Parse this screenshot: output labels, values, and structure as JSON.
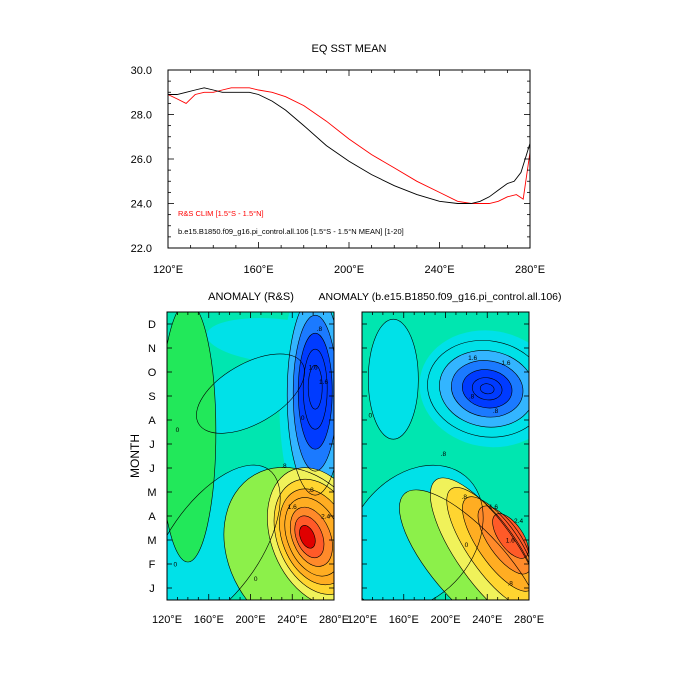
{
  "chart_data": [
    {
      "type": "line",
      "title": "EQ SST MEAN",
      "xlabel": "",
      "ylabel": "",
      "xlim": [
        120,
        280
      ],
      "ylim": [
        22,
        30
      ],
      "x_ticks": [
        "120°E",
        "160°E",
        "200°E",
        "240°E",
        "280°E"
      ],
      "y_ticks": [
        "22.0",
        "24.0",
        "26.0",
        "28.0",
        "30.0"
      ],
      "legend_position": "lower-left",
      "series": [
        {
          "name": "R&S CLIM [1.5°S - 1.5°N]",
          "color": "#ff0000",
          "x": [
            120,
            124,
            128,
            132,
            136,
            140,
            144,
            148,
            152,
            156,
            160,
            166,
            172,
            180,
            190,
            200,
            210,
            220,
            230,
            240,
            248,
            254,
            258,
            262,
            266,
            270,
            274,
            277,
            280
          ],
          "y": [
            28.9,
            28.7,
            28.5,
            28.9,
            29.0,
            29.0,
            29.1,
            29.2,
            29.2,
            29.2,
            29.1,
            29.0,
            28.8,
            28.4,
            27.7,
            26.9,
            26.2,
            25.6,
            25.0,
            24.5,
            24.1,
            24.0,
            24.0,
            24.0,
            24.1,
            24.3,
            24.4,
            24.2,
            26.3
          ]
        },
        {
          "name": "b.e15.B1850.f09_g16.pi_control.all.106 [1.5°S - 1.5°N MEAN] [1-20]",
          "color": "#000000",
          "x": [
            120,
            124,
            128,
            132,
            136,
            140,
            144,
            150,
            156,
            160,
            166,
            172,
            180,
            190,
            200,
            210,
            220,
            230,
            240,
            248,
            254,
            258,
            262,
            266,
            270,
            273,
            276,
            280
          ],
          "y": [
            28.9,
            28.9,
            29.0,
            29.1,
            29.2,
            29.1,
            29.0,
            29.0,
            29.0,
            28.9,
            28.6,
            28.2,
            27.5,
            26.6,
            25.9,
            25.3,
            24.8,
            24.4,
            24.1,
            24.0,
            24.0,
            24.1,
            24.3,
            24.6,
            24.9,
            25.0,
            25.4,
            26.7
          ]
        }
      ]
    },
    {
      "type": "heatmap",
      "title": "ANOMALY (R&S)",
      "ylabel": "MONTH",
      "xlim": [
        120,
        280
      ],
      "x_ticks": [
        "120°E",
        "160°E",
        "200°E",
        "240°E",
        "280°E"
      ],
      "y_categories": [
        "J",
        "F",
        "M",
        "A",
        "M",
        "J",
        "J",
        "A",
        "S",
        "O",
        "N",
        "D"
      ],
      "contour_interval": 0.4,
      "contour_labels": [
        "0",
        "0",
        "0",
        "0",
        ".8",
        ".8",
        ".8",
        "1.6",
        "1.6",
        "1.6",
        "2.4"
      ],
      "features": [
        {
          "kind": "warm",
          "lon": 266,
          "month": 2.8,
          "peak": 3.0
        },
        {
          "kind": "cold",
          "lon": 262,
          "month": 8.7,
          "peak": -2.0
        },
        {
          "kind": "cold",
          "lon": 160,
          "month": 2.0,
          "peak": -0.6
        },
        {
          "kind": "warm",
          "lon": 135,
          "month": 8.0,
          "peak": 0.3
        }
      ]
    },
    {
      "type": "heatmap",
      "title": "ANOMALY (b.e15.B1850.f09_g16.pi_control.all.106)",
      "xlim": [
        120,
        280
      ],
      "x_ticks": [
        "120°E",
        "160°E",
        "200°E",
        "240°E",
        "280°E"
      ],
      "y_categories": [
        "J",
        "F",
        "M",
        "A",
        "M",
        "J",
        "J",
        "A",
        "S",
        "O",
        "N",
        "D"
      ],
      "contour_interval": 0.4,
      "contour_labels": [
        "0",
        "0",
        ".8",
        ".8",
        ".8",
        ".8",
        ".8",
        "1.6",
        "1.6",
        "1.6",
        "2.4",
        "1.6"
      ],
      "features": [
        {
          "kind": "warm",
          "lon": 268,
          "month": 3.0,
          "peak": 2.6
        },
        {
          "kind": "cold",
          "lon": 238,
          "month": 8.8,
          "peak": -2.2
        },
        {
          "kind": "cold",
          "lon": 150,
          "month": 2.5,
          "peak": -0.5
        }
      ]
    }
  ],
  "palette": [
    "#003bff",
    "#1b7aff",
    "#33b5ff",
    "#00e1e8",
    "#00e6b0",
    "#22e85a",
    "#8cf04a",
    "#f0f25a",
    "#ffd530",
    "#ffad22",
    "#ff8a2a",
    "#ff5a28",
    "#e00000"
  ]
}
